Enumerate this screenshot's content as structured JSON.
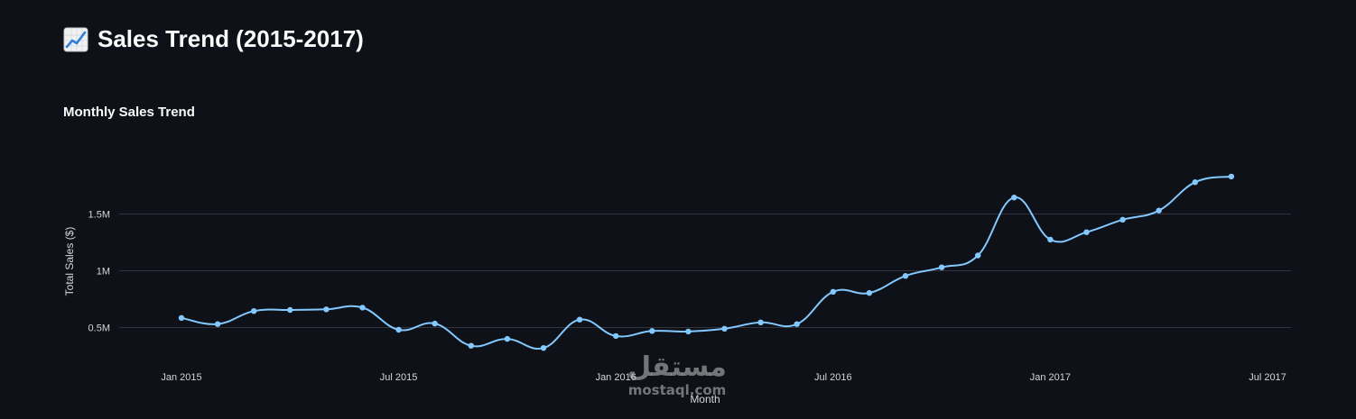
{
  "header": {
    "icon": "chart-increasing-icon",
    "title": "Sales Trend (2015-2017)"
  },
  "chart": {
    "subtitle": "Monthly Sales Trend"
  },
  "watermark": {
    "text": "مستقل",
    "sub": "mostaql.com"
  },
  "colors": {
    "background": "#0e1117",
    "line": "#83c9ff",
    "grid": "#31333f",
    "text": "#fafafa",
    "tick": "#d5d6d8"
  },
  "chart_data": {
    "type": "line",
    "title": "Monthly Sales Trend",
    "xlabel": "Month",
    "ylabel": "Total Sales ($)",
    "x": [
      "2015-01",
      "2015-02",
      "2015-03",
      "2015-04",
      "2015-05",
      "2015-06",
      "2015-07",
      "2015-08",
      "2015-09",
      "2015-10",
      "2015-11",
      "2015-12",
      "2016-01",
      "2016-02",
      "2016-03",
      "2016-04",
      "2016-05",
      "2016-06",
      "2016-07",
      "2016-08",
      "2016-09",
      "2016-10",
      "2016-11",
      "2016-12",
      "2017-01",
      "2017-02",
      "2017-03",
      "2017-04",
      "2017-05",
      "2017-06"
    ],
    "values": [
      585000,
      530000,
      645000,
      655000,
      660000,
      675000,
      480000,
      535000,
      340000,
      400000,
      320000,
      570000,
      425000,
      470000,
      465000,
      490000,
      545000,
      530000,
      815000,
      805000,
      955000,
      1030000,
      1135000,
      1645000,
      1275000,
      1340000,
      1450000,
      1530000,
      1780000,
      1830000
    ],
    "x_ticks": [
      "Jan 2015",
      "Jul 2015",
      "Jan 2016",
      "Jul 2016",
      "Jan 2017",
      "Jul 2017"
    ],
    "y_ticks": [
      {
        "value": 500000,
        "label": "0.5M"
      },
      {
        "value": 1000000,
        "label": "1M"
      },
      {
        "value": 1500000,
        "label": "1.5M"
      }
    ],
    "grid": true,
    "markers": true,
    "smooth": true
  }
}
